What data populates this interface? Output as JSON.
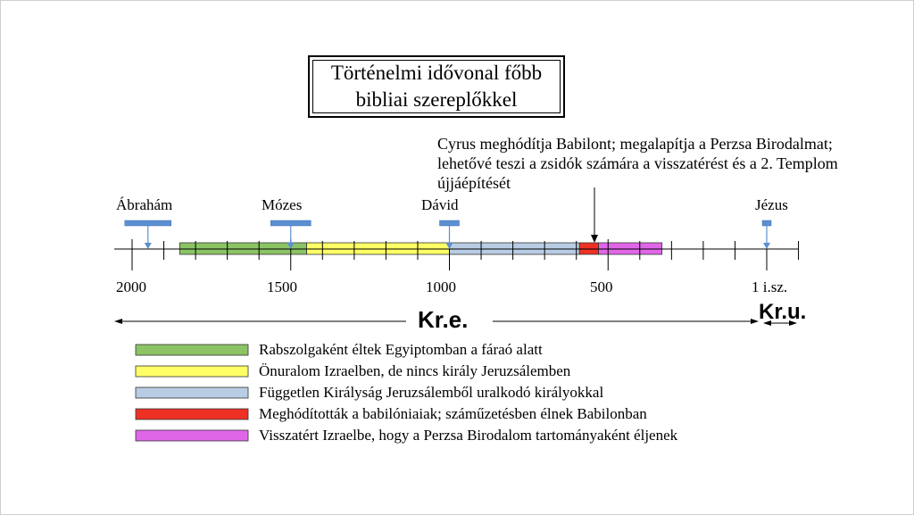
{
  "title": {
    "line1": "Történelmi idővonal főbb",
    "line2": "bibliai szereplőkkel"
  },
  "cyrus_note": "Cyrus meghódítja Babilont; megalapítja a Perzsa Birodalmat; lehetővé teszi a zsidók számára a visszatérést és a 2. Templom újjáépítését",
  "people": [
    {
      "name": "Ábrahám",
      "year": 1950
    },
    {
      "name": "Mózes",
      "year": 1500
    },
    {
      "name": "Dávid",
      "year": 1000
    },
    {
      "name": "Jézus",
      "year": 0
    }
  ],
  "tick_labels": [
    "2000",
    "1500",
    "1000",
    "500",
    "1 i.sz."
  ],
  "era_bc": "Kr.e.",
  "era_ad": "Kr.u.",
  "periods": [
    {
      "label": "Rabszolgaként éltek Egyiptomban a fáraó alatt",
      "color": "#8cc465",
      "start": 1850,
      "end": 1450
    },
    {
      "label": "Önuralom Izraelben, de nincs király Jeruzsálemben",
      "color": "#ffff66",
      "start": 1450,
      "end": 1000
    },
    {
      "label": "Független Királyság Jeruzsálemből uralkodó királyokkal",
      "color": "#b8cce4",
      "start": 1000,
      "end": 590
    },
    {
      "label": "Meghódították a babilóniaiak; száműzetésben élnek Babilonban",
      "color": "#ee3124",
      "start": 590,
      "end": 530
    },
    {
      "label": "Visszatért Izraelbe, hogy a Perzsa Birodalom tartományaként éljenek",
      "color": "#e066e8",
      "start": 530,
      "end": 330
    }
  ],
  "cyrus_year": 538
}
